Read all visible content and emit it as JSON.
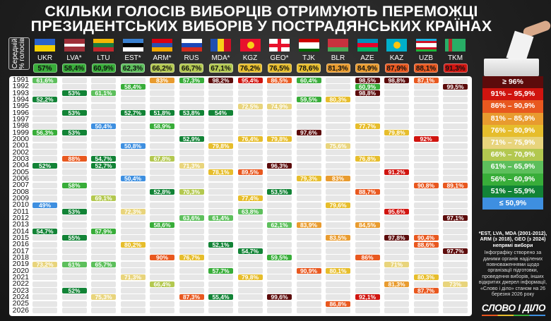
{
  "title": {
    "line1": "СКІЛЬКИ ГОЛОСІВ ВИБОРЦІВ ОТРИМУЮТЬ ПЕРЕМОЖЦІ",
    "line2": "ПРЕЗИДЕНТСЬКИХ ВИБОРІВ У ПОСТРАДЯНСЬКИХ КРАЇНАХ"
  },
  "avg_label": {
    "line1": "Середній",
    "line2": "% голосів"
  },
  "years": [
    "1991",
    "1992",
    "1993",
    "1994",
    "1995",
    "1996",
    "1997",
    "1998",
    "1999",
    "2000",
    "2001",
    "2002",
    "2003",
    "2004",
    "2005",
    "2006",
    "2007",
    "2008",
    "2009",
    "2010",
    "2011",
    "2012",
    "2013",
    "2014",
    "2015",
    "2016",
    "2017",
    "2018",
    "2019",
    "2020",
    "2021",
    "2022",
    "2023",
    "2024",
    "2025",
    "2026"
  ],
  "countries": [
    {
      "code": "UKR",
      "avg": "57%",
      "flag": {
        "dir": "h",
        "stripes": [
          "#2a62c9",
          "#f5d000"
        ]
      },
      "results": {
        "1991": "61,6%",
        "1994": "52,2%",
        "1999": "56,3%",
        "2004": "52%",
        "2010": "49%",
        "2014": "54,7%",
        "2019": "73,2%"
      }
    },
    {
      "code": "LVA*",
      "avg": "58,4%",
      "flag": {
        "dir": "h",
        "stripes": [
          "#9e3039",
          "#9e3039",
          "#ffffff",
          "#9e3039",
          "#9e3039"
        ]
      },
      "results": {
        "1993": "53%",
        "1996": "53%",
        "1999": "53%",
        "2003": "88%",
        "2007": "58%",
        "2011": "53%",
        "2015": "55%",
        "2019": "61%",
        "2023": "52%"
      }
    },
    {
      "code": "LTU",
      "avg": "60,9%",
      "flag": {
        "dir": "h",
        "stripes": [
          "#f2b705",
          "#1a7a3e",
          "#c1272d"
        ]
      },
      "results": {
        "1993": "61,1%",
        "1998": "50,4%",
        "2003": "54,7%",
        "2004": "52,7%",
        "2009": "69,1%",
        "2014": "57,9%",
        "2019": "65,7%",
        "2024": "75,3%"
      }
    },
    {
      "code": "EST*",
      "avg": "62,3%",
      "flag": {
        "dir": "h",
        "stripes": [
          "#3a80d0",
          "#000000",
          "#ffffff"
        ]
      },
      "results": {
        "1992": "58,4%",
        "1996": "52,7%",
        "2001": "50,8%",
        "2006": "50,4%",
        "2011": "72,3%",
        "2016": "80,2%",
        "2021": "71,3%"
      }
    },
    {
      "code": "ARM*",
      "avg": "66,2%",
      "flag": {
        "dir": "h",
        "stripes": [
          "#d90012",
          "#2a4fb0",
          "#f2a800"
        ]
      },
      "results": {
        "1991": "83%",
        "1996": "51,8%",
        "1998": "58,9%",
        "2003": "67,8%",
        "2008": "52,8%",
        "2013": "58,6%",
        "2018": "90%",
        "2022": "66,4%"
      }
    },
    {
      "code": "RUS",
      "avg": "66,7%",
      "flag": {
        "dir": "h",
        "stripes": [
          "#ffffff",
          "#1c47b8",
          "#d52b1e"
        ]
      },
      "results": {
        "1991": "57,3%",
        "1996": "53,8%",
        "2000": "52,9%",
        "2004": "71,3%",
        "2008": "70,3%",
        "2012": "63,6%",
        "2018": "76,7%",
        "2024": "87,3%"
      }
    },
    {
      "code": "MDA*",
      "avg": "67,1%",
      "flag": {
        "dir": "v",
        "stripes": [
          "#1f4fb0",
          "#f7d117",
          "#cc1126"
        ]
      },
      "results": {
        "1991": "98,2%",
        "1996": "54%",
        "2001": "79,8%",
        "2005": "78,1%",
        "2012": "61,4%",
        "2016": "52,1%",
        "2020": "57,7%",
        "2024": "55,4%"
      }
    },
    {
      "code": "KGZ",
      "avg": "76,2%",
      "flag": {
        "dir": "h",
        "stripes": [
          "#e8112d"
        ],
        "emblem": "#f7d117"
      },
      "results": {
        "1991": "95,4%",
        "1995": "72,5%",
        "2000": "76,4%",
        "2005": "89,5%",
        "2009": "77,4%",
        "2011": "63,8%",
        "2017": "54,7%",
        "2021": "79,8%"
      }
    },
    {
      "code": "GEO*",
      "avg": "76,5%",
      "flag": {
        "dir": "h",
        "stripes": [
          "#ffffff"
        ],
        "cross": "#e8112d"
      },
      "results": {
        "1991": "86,5%",
        "1995": "74,9%",
        "2000": "79,8%",
        "2004": "96,3%",
        "2008": "53,5%",
        "2013": "62,1%",
        "2018": "59,5%",
        "2024": "99,6%"
      }
    },
    {
      "code": "TJK",
      "avg": "78,6%",
      "flag": {
        "dir": "h",
        "stripes": [
          "#cc0000",
          "#ffffff",
          "#ffffff",
          "#006600"
        ]
      },
      "results": {
        "1991": "60,4%",
        "1994": "59,5%",
        "1999": "97,6%",
        "2006": "79,3%",
        "2013": "83,9%",
        "2020": "90,9%"
      }
    },
    {
      "code": "BLR",
      "avg": "81,3%",
      "flag": {
        "dir": "h",
        "stripes": [
          "#c8313e",
          "#c8313e",
          "#4aa657"
        ]
      },
      "results": {
        "1994": "80,3%",
        "2001": "75,6%",
        "2006": "83%",
        "2010": "79,6%",
        "2015": "83,5%",
        "2020": "80,1%",
        "2025": "86,8%"
      }
    },
    {
      "code": "AZE",
      "avg": "84,9%",
      "flag": {
        "dir": "h",
        "stripes": [
          "#0092bc",
          "#e4002b",
          "#00af66"
        ]
      },
      "results": {
        "1991": "98,5%",
        "1992": "60,9%",
        "1993": "98,8%",
        "1998": "77,7%",
        "2003": "76,8%",
        "2008": "88,7%",
        "2013": "84,5%",
        "2018": "86%",
        "2024": "92,1%"
      }
    },
    {
      "code": "KAZ",
      "avg": "87,9%",
      "flag": {
        "dir": "h",
        "stripes": [
          "#00afca"
        ],
        "emblem": "#fec50c"
      },
      "results": {
        "1991": "98,8%",
        "1999": "79,8%",
        "2005": "91,2%",
        "2011": "95,6%",
        "2015": "97,8%",
        "2019": "71%",
        "2022": "81,3%"
      }
    },
    {
      "code": "UZB",
      "avg": "88,1%",
      "flag": {
        "dir": "h",
        "stripes": [
          "#1eb5e4",
          "#ce1126",
          "#ffffff",
          "#ffffff",
          "#ce1126",
          "#1eb53a"
        ]
      },
      "results": {
        "1991": "87,1%",
        "2000": "92%",
        "2007": "90,8%",
        "2015": "90,4%",
        "2016": "88,6%",
        "2021": "80,3%",
        "2023": "87,7%"
      }
    },
    {
      "code": "TKM",
      "avg": "91,3%",
      "flag": {
        "dir": "v",
        "stripes": [
          "#28ae66",
          "#b22c2c",
          "#28ae66",
          "#28ae66",
          "#28ae66",
          "#28ae66"
        ]
      },
      "results": {
        "1992": "99,5%",
        "2007": "89,1%",
        "2012": "97,1%",
        "2017": "97,7%",
        "2022": "73%"
      }
    }
  ],
  "legend": [
    {
      "label": "≥ 96%",
      "min": 96,
      "color": "#5c0b0b"
    },
    {
      "label": "91% – 95,9%",
      "min": 91,
      "color": "#d0140f"
    },
    {
      "label": "86% – 90,9%",
      "min": 86,
      "color": "#e8581f"
    },
    {
      "label": "81% – 85,9%",
      "min": 81,
      "color": "#e89b2f"
    },
    {
      "label": "76% – 80,9%",
      "min": 76,
      "color": "#e6bd2c"
    },
    {
      "label": "71% – 75,9%",
      "min": 71,
      "color": "#e8d47c"
    },
    {
      "label": "66% – 70,9%",
      "min": 66,
      "color": "#b3c850"
    },
    {
      "label": "61% – 65,9%",
      "min": 61,
      "color": "#5dbf5c"
    },
    {
      "label": "56% – 60,9%",
      "min": 56,
      "color": "#38ad39"
    },
    {
      "label": "51% – 55,9%",
      "min": 51,
      "color": "#128336"
    },
    {
      "label": "≤ 50,9%",
      "min": 0,
      "color": "#3e8fe0"
    }
  ],
  "footnote": {
    "indirect": "*EST, LVA, MDA (2001-2012), ARM (з 2018), GEO (з 2024) непрямі вибори",
    "source": "Інфографіку створено за даними органів наділених повноваженнями щодо організації підготовки, проведення виборів, інших відкритих джерел інформації, «Слово і діло» станом на 26 березня 2026 року"
  },
  "logo": "СЛОВО І ДІЛО"
}
